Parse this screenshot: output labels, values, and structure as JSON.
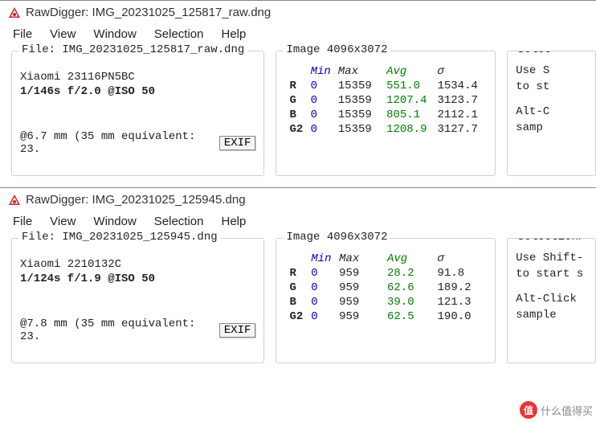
{
  "windows": [
    {
      "app_title": "RawDigger: IMG_20231025_125817_raw.dng",
      "menu": [
        "File",
        "View",
        "Window",
        "Selection",
        "Help"
      ],
      "file_group_title": "File: IMG_20231025_125817_raw.dng",
      "camera": "Xiaomi 23116PN5BC",
      "exposure": "1/146s f/2.0 @ISO 50",
      "focal": "@6.7 mm (35 mm equivalent: 23.",
      "exif_btn": "EXIF",
      "image_group_title": "Image 4096x3072",
      "headers": {
        "min": "Min",
        "max": "Max",
        "avg": "Avg",
        "sigma": "σ"
      },
      "channels": [
        {
          "ch": "R",
          "min": "0",
          "max": "15359",
          "avg": "551.0",
          "sigma": "1534.4"
        },
        {
          "ch": "G",
          "min": "0",
          "max": "15359",
          "avg": "1207.4",
          "sigma": "3123.7"
        },
        {
          "ch": "B",
          "min": "0",
          "max": "15359",
          "avg": "805.1",
          "sigma": "2112.1"
        },
        {
          "ch": "G2",
          "min": "0",
          "max": "15359",
          "avg": "1208.9",
          "sigma": "3127.7"
        }
      ],
      "sel_title": "Selec",
      "sel_lines": [
        "Use S",
        "to st",
        "",
        "Alt-C",
        "samp"
      ]
    },
    {
      "app_title": "RawDigger: IMG_20231025_125945.dng",
      "menu": [
        "File",
        "View",
        "Window",
        "Selection",
        "Help"
      ],
      "file_group_title": "File: IMG_20231025_125945.dng",
      "camera": "Xiaomi 2210132C",
      "exposure": "1/124s f/1.9 @ISO 50",
      "focal": "@7.8 mm (35 mm equivalent: 23.",
      "exif_btn": "EXIF",
      "image_group_title": "Image 4096x3072",
      "headers": {
        "min": "Min",
        "max": "Max",
        "avg": "Avg",
        "sigma": "σ"
      },
      "channels": [
        {
          "ch": "R",
          "min": "0",
          "max": "959",
          "avg": "28.2",
          "sigma": "91.8"
        },
        {
          "ch": "G",
          "min": "0",
          "max": "959",
          "avg": "62.6",
          "sigma": "189.2"
        },
        {
          "ch": "B",
          "min": "0",
          "max": "959",
          "avg": "39.0",
          "sigma": "121.3"
        },
        {
          "ch": "G2",
          "min": "0",
          "max": "959",
          "avg": "62.5",
          "sigma": "190.0"
        }
      ],
      "sel_title": "Selection/",
      "sel_lines": [
        "Use Shift-",
        "to start s",
        "",
        "Alt-Click",
        "sample"
      ]
    }
  ],
  "watermark": "什么值得买",
  "colors": {
    "blue": "#0000cc",
    "green": "#008000",
    "icon_red": "#d02020",
    "icon_inner": "#ffffff"
  }
}
